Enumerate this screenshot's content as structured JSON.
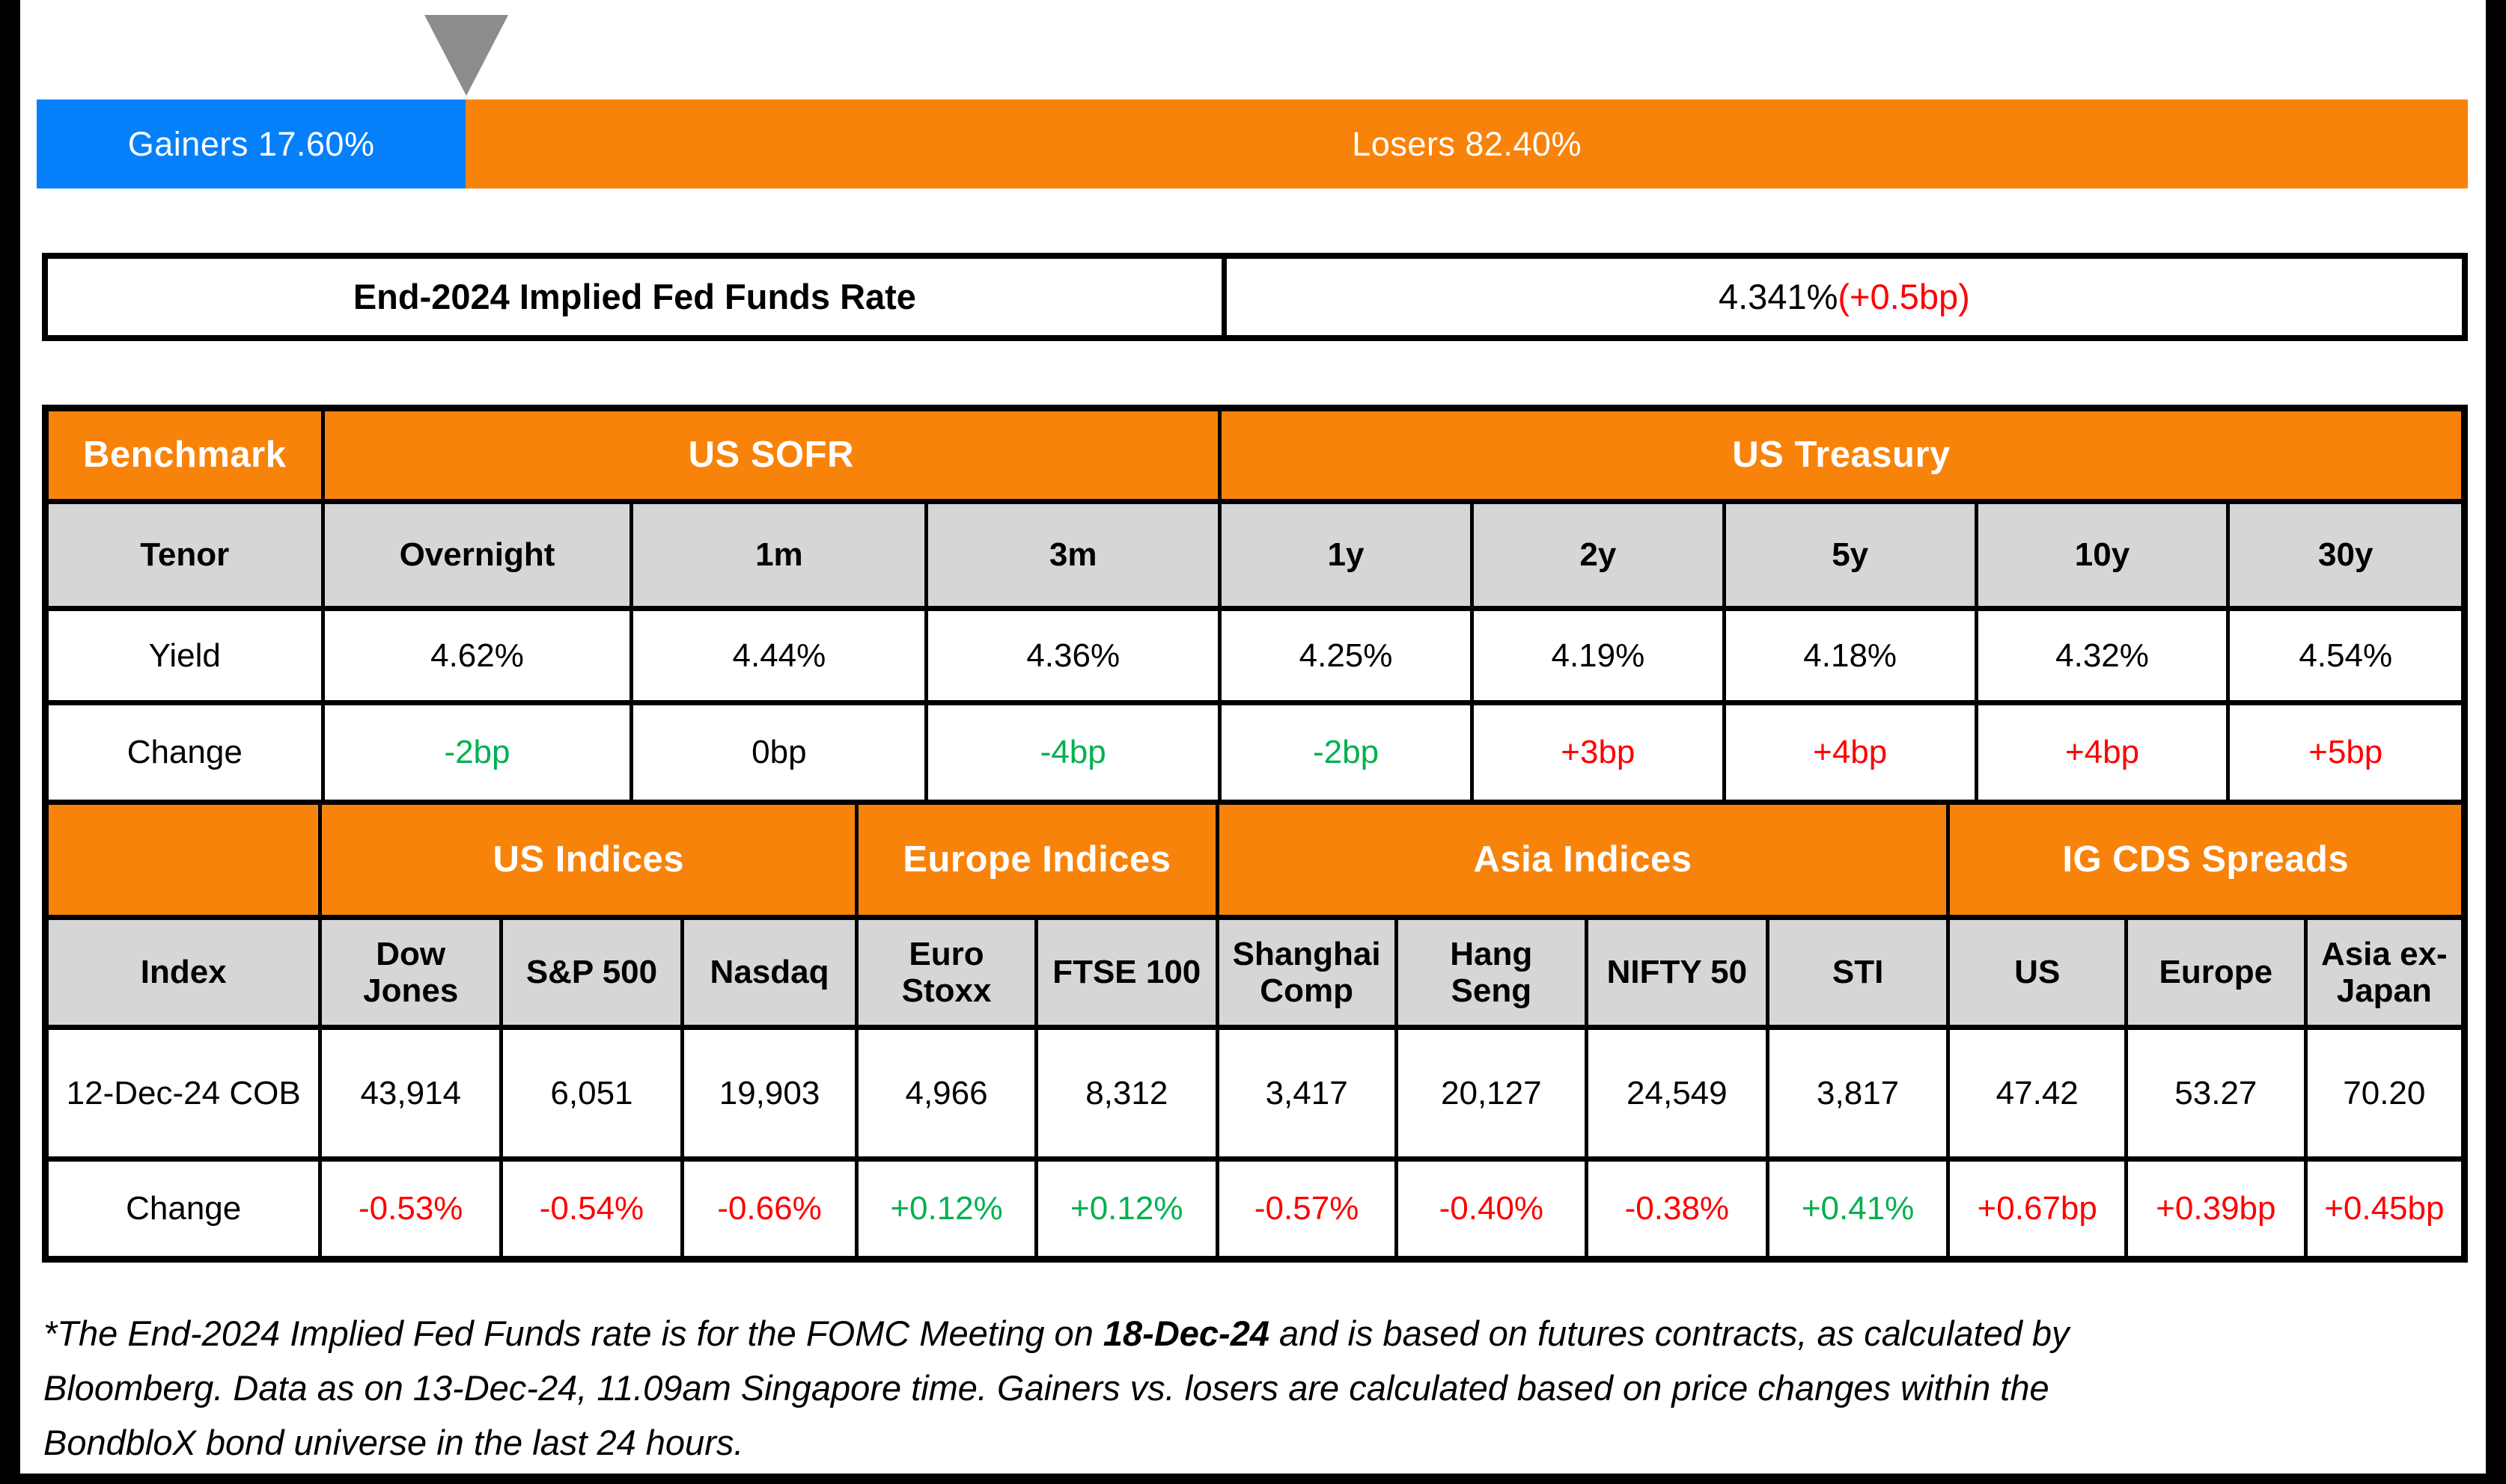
{
  "colors": {
    "gainers_blue": "#0580FA",
    "losers_orange": "#F8830A",
    "positive_green": "#00B050",
    "negative_red": "#FF0000",
    "header_gray": "#D6D6D6",
    "marker_gray": "#8C8C8C"
  },
  "gainers_losers_bar": {
    "gainers_label": "Gainers 17.60%",
    "losers_label": "Losers 82.40%",
    "gainers_pct": 17.6,
    "losers_pct": 82.4
  },
  "fed_funds": {
    "label": "End-2024 Implied Fed Funds Rate",
    "value": "4.341% ",
    "change": "(+0.5bp)"
  },
  "benchmark_table": {
    "header": {
      "benchmark": "Benchmark",
      "us_sofr": "US SOFR",
      "us_treasury": "US Treasury"
    },
    "row_labels": {
      "tenor": "Tenor",
      "yield": "Yield",
      "change": "Change"
    },
    "columns": [
      {
        "tenor": "Overnight",
        "yield": "4.62%",
        "change": "-2bp",
        "color": "green"
      },
      {
        "tenor": "1m",
        "yield": "4.44%",
        "change": "0bp",
        "color": "black"
      },
      {
        "tenor": "3m",
        "yield": "4.36%",
        "change": "-4bp",
        "color": "green"
      },
      {
        "tenor": "1y",
        "yield": "4.25%",
        "change": "-2bp",
        "color": "green"
      },
      {
        "tenor": "2y",
        "yield": "4.19%",
        "change": "+3bp",
        "color": "red"
      },
      {
        "tenor": "5y",
        "yield": "4.18%",
        "change": "+4bp",
        "color": "red"
      },
      {
        "tenor": "10y",
        "yield": "4.32%",
        "change": "+4bp",
        "color": "red"
      },
      {
        "tenor": "30y",
        "yield": "4.54%",
        "change": "+5bp",
        "color": "red"
      }
    ]
  },
  "indices_table": {
    "header": {
      "us_indices": "US Indices",
      "europe_indices": "Europe Indices",
      "asia_indices": "Asia Indices",
      "ig_cds": "IG CDS Spreads"
    },
    "row_labels": {
      "index": "Index",
      "cob": "12-Dec-24 COB",
      "change": "Change"
    },
    "columns": [
      {
        "name": "Dow Jones",
        "cob": "43,914",
        "change": "-0.53%",
        "color": "red"
      },
      {
        "name": "S&P 500",
        "cob": "6,051",
        "change": "-0.54%",
        "color": "red"
      },
      {
        "name": "Nasdaq",
        "cob": "19,903",
        "change": "-0.66%",
        "color": "red"
      },
      {
        "name": "Euro Stoxx",
        "cob": "4,966",
        "change": "+0.12%",
        "color": "green"
      },
      {
        "name": "FTSE 100",
        "cob": "8,312",
        "change": "+0.12%",
        "color": "green"
      },
      {
        "name": "Shanghai Comp",
        "cob": "3,417",
        "change": "-0.57%",
        "color": "red"
      },
      {
        "name": "Hang Seng",
        "cob": "20,127",
        "change": "-0.40%",
        "color": "red"
      },
      {
        "name": "NIFTY 50",
        "cob": "24,549",
        "change": "-0.38%",
        "color": "red"
      },
      {
        "name": "STI",
        "cob": "3,817",
        "change": "+0.41%",
        "color": "green"
      },
      {
        "name": "US",
        "cob": "47.42",
        "change": "+0.67bp",
        "color": "red"
      },
      {
        "name": "Europe",
        "cob": "53.27",
        "change": "+0.39bp",
        "color": "red"
      },
      {
        "name": "Asia ex-Japan",
        "cob": "70.20",
        "change": "+0.45bp",
        "color": "red"
      }
    ]
  },
  "footnote": {
    "line1_pre": "*The End-2024 Implied Fed Funds rate is for the FOMC Meeting on ",
    "line1_bold": "18-Dec-24",
    "line1_post": " and is based on futures contracts, as calculated by",
    "line2": "Bloomberg. Data as on 13-Dec-24, 11.09am Singapore time. Gainers vs. losers are calculated based on price changes within the",
    "line3": "BondbloX bond universe in the last 24 hours."
  },
  "chart_data": [
    {
      "type": "bar",
      "title": "Gainers vs Losers (stacked horizontal bar)",
      "categories": [
        "Gainers",
        "Losers"
      ],
      "values": [
        17.6,
        82.4
      ],
      "colors": [
        "#0580FA",
        "#F8830A"
      ],
      "annotation": "gray down-pointing triangle marker at the 17.60% boundary"
    },
    {
      "type": "table",
      "title": "Benchmark — US SOFR / US Treasury",
      "columns": [
        "Overnight",
        "1m",
        "3m",
        "1y",
        "2y",
        "5y",
        "10y",
        "30y"
      ],
      "rows": {
        "Yield": [
          "4.62%",
          "4.44%",
          "4.36%",
          "4.25%",
          "4.19%",
          "4.18%",
          "4.32%",
          "4.54%"
        ],
        "Change": [
          "-2bp",
          "0bp",
          "-4bp",
          "-2bp",
          "+3bp",
          "+4bp",
          "+4bp",
          "+5bp"
        ]
      }
    },
    {
      "type": "table",
      "title": "Indices and IG CDS Spreads",
      "columns": [
        "Dow Jones",
        "S&P 500",
        "Nasdaq",
        "Euro Stoxx",
        "FTSE 100",
        "Shanghai Comp",
        "Hang Seng",
        "NIFTY 50",
        "STI",
        "US",
        "Europe",
        "Asia ex-Japan"
      ],
      "rows": {
        "12-Dec-24 COB": [
          "43,914",
          "6,051",
          "19,903",
          "4,966",
          "8,312",
          "3,417",
          "20,127",
          "24,549",
          "3,817",
          "47.42",
          "53.27",
          "70.20"
        ],
        "Change": [
          "-0.53%",
          "-0.54%",
          "-0.66%",
          "+0.12%",
          "+0.12%",
          "-0.57%",
          "-0.40%",
          "-0.38%",
          "+0.41%",
          "+0.67bp",
          "+0.39bp",
          "+0.45bp"
        ]
      }
    }
  ]
}
